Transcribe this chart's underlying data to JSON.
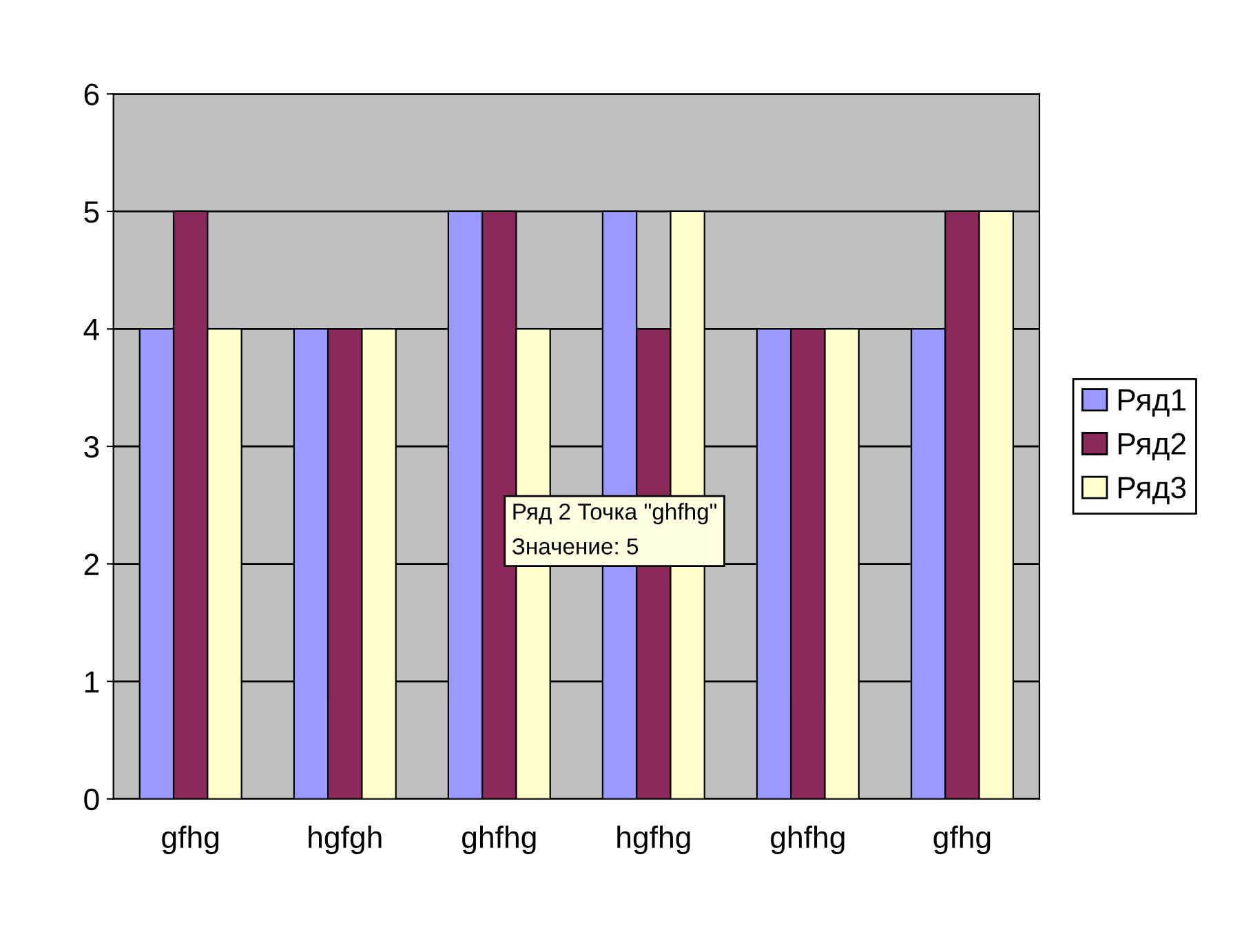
{
  "chart_data": {
    "type": "bar",
    "categories": [
      "gfhg",
      "hgfgh",
      "ghfhg",
      "hgfhg",
      "ghfhg",
      "gfhg"
    ],
    "series": [
      {
        "name": "Ряд1",
        "color": "#9999ff",
        "values": [
          4,
          4,
          5,
          5,
          4,
          4
        ]
      },
      {
        "name": "Ряд2",
        "color": "#8b2a5a",
        "values": [
          5,
          4,
          5,
          4,
          4,
          5
        ]
      },
      {
        "name": "Ряд3",
        "color": "#ffffcc",
        "values": [
          4,
          4,
          4,
          5,
          4,
          5
        ]
      }
    ],
    "ylim": [
      0,
      6
    ],
    "yticks": [
      0,
      1,
      2,
      3,
      4,
      5,
      6
    ],
    "grid": "y",
    "legend": "right",
    "annotations": [
      "Ряд 2 Точка \"ghfhg\"\nЗначение: 5"
    ]
  }
}
